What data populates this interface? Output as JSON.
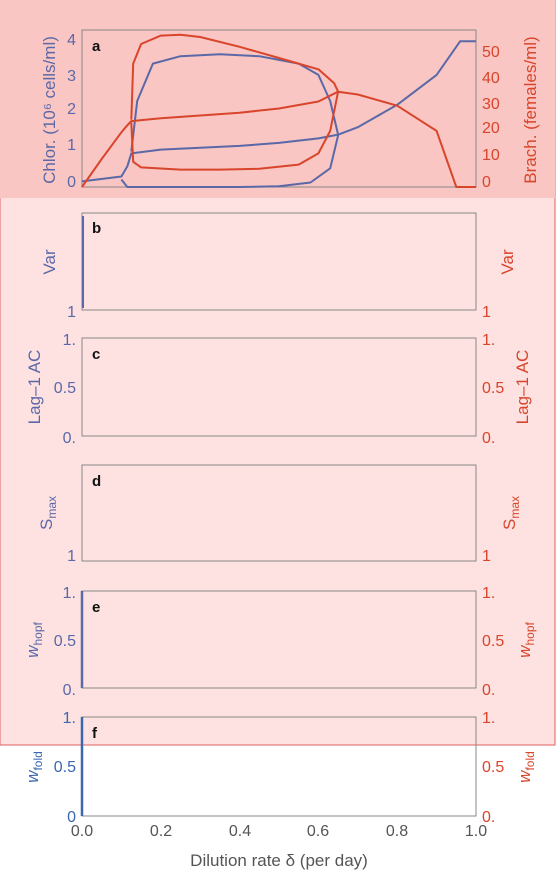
{
  "colors": {
    "chlor": "#5b68a8",
    "brach": "#d8452b",
    "panel_a_bg": "#f9c6c3",
    "panels_bg": "#fde2e1",
    "overlay_border": "#e06060",
    "wfold_chlor": "#3b66b0"
  },
  "xaxis": {
    "label": "Dilution rate δ (per day)",
    "ticks": [
      "0.0",
      "0.2",
      "0.4",
      "0.6",
      "0.8",
      "1.0"
    ]
  },
  "panels": {
    "a": {
      "letter": "a",
      "left_label": "Chlor. (10⁶ cells/ml)",
      "right_label": "Brach. (females/ml)",
      "left_ticks": [
        "0",
        "1",
        "2",
        "3",
        "4"
      ],
      "right_ticks": [
        "0",
        "10",
        "20",
        "30",
        "40",
        "50"
      ]
    },
    "b": {
      "letter": "b",
      "left_label": "Var",
      "right_label": "Var",
      "left_tick": "1",
      "right_tick": "1"
    },
    "c": {
      "letter": "c",
      "left_label": "Lag–1 AC",
      "right_label": "Lag–1 AC",
      "left_ticks": [
        "0.",
        "0.5",
        "1."
      ],
      "right_ticks": [
        "0.",
        "0.5",
        "1."
      ]
    },
    "d": {
      "letter": "d",
      "left_label": "S",
      "left_sub": "max",
      "right_label": "S",
      "right_sub": "max",
      "left_tick": "1",
      "right_tick": "1"
    },
    "e": {
      "letter": "e",
      "left_label": "w",
      "left_sub": "hopf",
      "right_label": "w",
      "right_sub": "hopf",
      "left_ticks": [
        "0.",
        "0.5",
        "1."
      ],
      "right_ticks": [
        "0.",
        "0.5",
        "1."
      ]
    },
    "f": {
      "letter": "f",
      "left_label": "w",
      "left_sub": "fold",
      "right_label": "w",
      "right_sub": "fold",
      "left_ticks": [
        "0",
        "0.5",
        "1."
      ],
      "right_ticks": [
        "0.",
        "0.5",
        "1."
      ]
    }
  },
  "chart_data": [
    {
      "panel": "a",
      "type": "line",
      "xlim": [
        0,
        1
      ],
      "ylim_left": [
        0,
        4.2
      ],
      "ylim_right": [
        0,
        56
      ],
      "series": [
        {
          "axis": "left",
          "role": "chlor-equilibrium",
          "x": [
            0.0,
            0.1,
            0.115,
            0.125,
            0.2,
            0.3,
            0.4,
            0.5,
            0.6,
            0.64,
            0.65,
            0.7,
            0.8,
            0.9,
            0.96,
            1.0
          ],
          "y": [
            0.15,
            0.28,
            0.55,
            0.9,
            1.0,
            1.05,
            1.1,
            1.18,
            1.3,
            1.38,
            1.4,
            1.6,
            2.2,
            3.0,
            3.9,
            3.9
          ]
        },
        {
          "axis": "left",
          "role": "chlor-cycle-max",
          "x": [
            0.125,
            0.14,
            0.18,
            0.25,
            0.35,
            0.45,
            0.55,
            0.6,
            0.63,
            0.65
          ],
          "y": [
            0.95,
            2.3,
            3.3,
            3.5,
            3.55,
            3.5,
            3.3,
            3.0,
            2.3,
            1.4
          ]
        },
        {
          "axis": "left",
          "role": "chlor-cycle-min",
          "x": [
            0.1,
            0.115,
            0.13,
            0.25,
            0.4,
            0.5,
            0.58,
            0.63,
            0.65
          ],
          "y": [
            0.2,
            0.0,
            0.0,
            0.0,
            0.0,
            0.02,
            0.12,
            0.5,
            1.38
          ]
        },
        {
          "axis": "right",
          "role": "brach-equilibrium",
          "x": [
            0.0,
            0.05,
            0.1,
            0.115,
            0.125,
            0.2,
            0.3,
            0.4,
            0.5,
            0.6,
            0.65,
            0.7,
            0.8,
            0.9,
            0.95,
            1.0
          ],
          "y": [
            0.0,
            10.0,
            19.5,
            22.0,
            23.5,
            24.5,
            25.5,
            26.5,
            28.0,
            30.5,
            34.0,
            33.0,
            29.0,
            20.0,
            0.0,
            0.0
          ]
        },
        {
          "axis": "right",
          "role": "brach-cycle-max",
          "x": [
            0.125,
            0.13,
            0.15,
            0.2,
            0.25,
            0.3,
            0.4,
            0.5,
            0.6,
            0.64,
            0.65
          ],
          "y": [
            24.0,
            44.0,
            51.0,
            54.0,
            54.3,
            53.5,
            50.0,
            46.0,
            42.0,
            37.0,
            34.0
          ]
        },
        {
          "axis": "right",
          "role": "brach-cycle-min",
          "x": [
            0.125,
            0.13,
            0.15,
            0.25,
            0.35,
            0.45,
            0.55,
            0.6,
            0.63,
            0.65
          ],
          "y": [
            23.0,
            9.0,
            7.0,
            6.2,
            6.2,
            6.5,
            8.0,
            12.0,
            20.0,
            34.0
          ]
        }
      ]
    },
    {
      "panel": "b",
      "type": "line",
      "xlim": [
        0,
        1
      ],
      "series": []
    },
    {
      "panel": "c",
      "type": "line",
      "xlim": [
        0,
        1
      ],
      "ylim": [
        0,
        1
      ],
      "series": []
    },
    {
      "panel": "d",
      "type": "line",
      "xlim": [
        0,
        1
      ],
      "series": []
    },
    {
      "panel": "e",
      "type": "line",
      "xlim": [
        0,
        1
      ],
      "ylim": [
        0,
        1
      ],
      "series": [
        {
          "axis": "left",
          "role": "chlor",
          "x": [
            0.0,
            0.0
          ],
          "y": [
            0.0,
            1.0
          ]
        }
      ]
    },
    {
      "panel": "f",
      "type": "line",
      "xlim": [
        0,
        1
      ],
      "ylim": [
        0,
        1
      ],
      "series": [
        {
          "axis": "left",
          "role": "chlor",
          "x": [
            0.0,
            0.0
          ],
          "y": [
            0.0,
            1.0
          ]
        }
      ]
    }
  ]
}
